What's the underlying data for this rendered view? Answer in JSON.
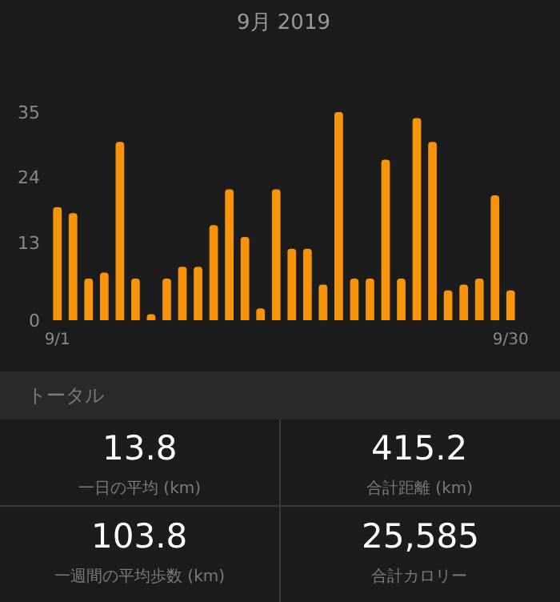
{
  "chart_data": [
    {
      "type": "bar",
      "title": "9月 2019",
      "categories": [
        "9/1",
        null,
        null,
        null,
        null,
        null,
        null,
        null,
        null,
        null,
        null,
        null,
        null,
        null,
        null,
        null,
        null,
        null,
        null,
        null,
        null,
        null,
        null,
        null,
        null,
        null,
        null,
        null,
        null,
        "9/30"
      ],
      "values": [
        19,
        18,
        7,
        8,
        30,
        7,
        1,
        7,
        9,
        9,
        16,
        22,
        14,
        2,
        22,
        12,
        12,
        6,
        35,
        7,
        7,
        27,
        7,
        34,
        30,
        5,
        6,
        7,
        21,
        5
      ],
      "color": "#f7940c",
      "ylim": [
        0,
        35
      ],
      "yticks": [
        0,
        13,
        24,
        35
      ],
      "grid": false,
      "legend": false
    },
    {
      "type": "other",
      "title": "トータル",
      "annotations": [
        "13.8",
        "一日の平均 (km)",
        "415.2",
        "合計距離 (km)",
        "103.8",
        "一週間の平均歩数 (km)",
        "25,585",
        "合計カロリー"
      ]
    }
  ]
}
